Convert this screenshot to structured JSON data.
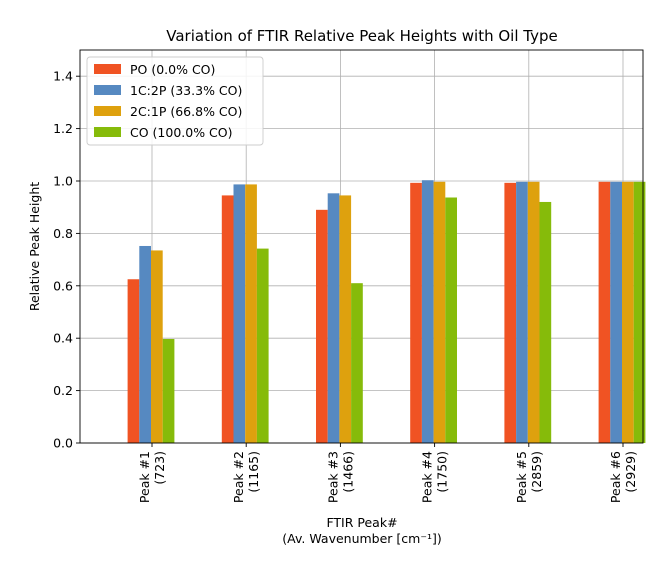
{
  "chart_data": {
    "type": "bar",
    "title": "Variation of FTIR Relative Peak Heights with Oil Type",
    "xlabel_line1": "FTIR Peak#",
    "xlabel_line2": "(Av. Wavenumber [cm⁻¹])",
    "ylabel": "Relative Peak Height",
    "ylim": [
      0,
      1.5
    ],
    "yticks": [
      "0.0",
      "0.2",
      "0.4",
      "0.6",
      "0.8",
      "1.0",
      "1.2",
      "1.4"
    ],
    "grid": true,
    "legend_position": "top-left",
    "categories": [
      {
        "line1": "Peak #1",
        "line2": "(723)"
      },
      {
        "line1": "Peak #2",
        "line2": "(1165)"
      },
      {
        "line1": "Peak #3",
        "line2": "(1466)"
      },
      {
        "line1": "Peak #4",
        "line2": "(1750)"
      },
      {
        "line1": "Peak #5",
        "line2": "(2859)"
      },
      {
        "line1": "Peak #6",
        "line2": "(2929)"
      }
    ],
    "series": [
      {
        "name": "PO (0.0% CO)",
        "color": "#f05323",
        "values": [
          0.625,
          0.945,
          0.89,
          0.993,
          0.993,
          0.997
        ]
      },
      {
        "name": "1C:2P (33.3% CO)",
        "color": "#5689c1",
        "values": [
          0.752,
          0.987,
          0.953,
          1.003,
          0.997,
          0.997
        ]
      },
      {
        "name": "2C:1P (66.8% CO)",
        "color": "#dea10e",
        "values": [
          0.735,
          0.987,
          0.945,
          0.997,
          0.997,
          0.997
        ]
      },
      {
        "name": "CO (100.0% CO)",
        "color": "#86bb0a",
        "values": [
          0.397,
          0.742,
          0.61,
          0.937,
          0.92,
          0.997
        ]
      }
    ]
  }
}
